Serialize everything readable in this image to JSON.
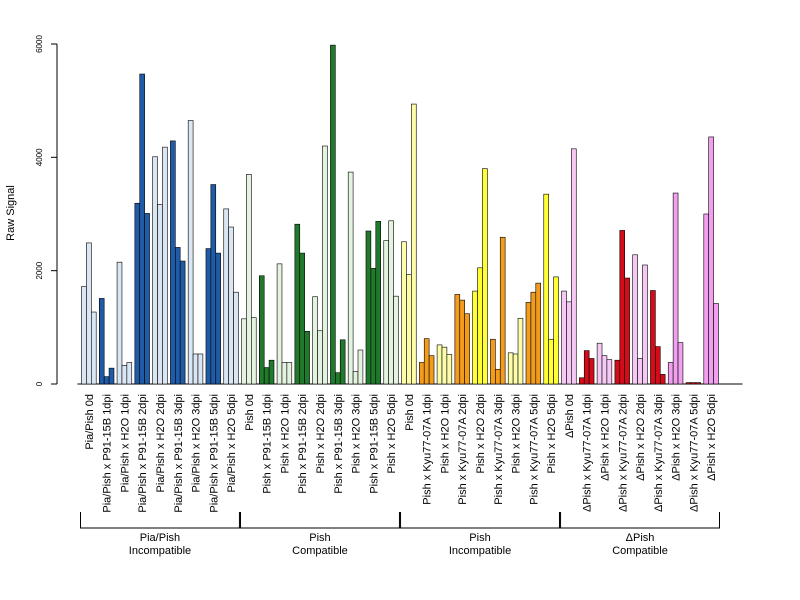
{
  "chart_data": {
    "type": "bar",
    "ylabel": "Raw Signal",
    "xlabel": "",
    "ylim": [
      0,
      6000
    ],
    "yticks": [
      0,
      2000,
      4000,
      6000
    ],
    "grid": false,
    "legend": "none",
    "colors": {
      "light_blue": "#dbe6f4",
      "blue": "#1f5ba6",
      "light_green": "#e4f2e0",
      "green": "#217a2b",
      "light_yellow": "#fdfca8",
      "yellow": "#ffff33",
      "orange": "#f39c1c",
      "light_pink": "#f6c8f4",
      "pink": "#f0a0ee",
      "red": "#d40c1a"
    },
    "categories": [
      {
        "label": "Pia/Pish 0d",
        "color": "light_blue",
        "values": [
          1720,
          2490,
          1270
        ]
      },
      {
        "label": "Pia/Pish x P91-15B 1dpi",
        "color": "blue",
        "values": [
          1510,
          130,
          280
        ]
      },
      {
        "label": "Pia/Pish x H2O 1dpi",
        "color": "light_blue",
        "values": [
          2150,
          330,
          380
        ]
      },
      {
        "label": "Pia/Pish x P91-15B 2dpi",
        "color": "blue",
        "values": [
          3190,
          5470,
          3010
        ]
      },
      {
        "label": "Pia/Pish x H2O 2dpi",
        "color": "light_blue",
        "values": [
          4010,
          3170,
          4180
        ]
      },
      {
        "label": "Pia/Pish x P91-15B 3dpi",
        "color": "blue",
        "values": [
          4290,
          2410,
          2170
        ]
      },
      {
        "label": "Pia/Pish x H2O 3dpi",
        "color": "light_blue",
        "values": [
          4650,
          530,
          530
        ]
      },
      {
        "label": "Pia/Pish x P91-15B 5dpi",
        "color": "blue",
        "values": [
          2390,
          3520,
          2310
        ]
      },
      {
        "label": "Pia/Pish x H2O 5dpi",
        "color": "light_blue",
        "values": [
          3090,
          2770,
          1620
        ]
      },
      {
        "label": "Pish 0d",
        "color": "light_green",
        "values": [
          1150,
          3700,
          1170
        ]
      },
      {
        "label": "Pish x P91-15B 1dpi",
        "color": "green",
        "values": [
          1910,
          290,
          420
        ]
      },
      {
        "label": "Pish x H2O 1dpi",
        "color": "light_green",
        "values": [
          2120,
          380,
          380
        ]
      },
      {
        "label": "Pish x P91-15B 2dpi",
        "color": "green",
        "values": [
          2820,
          2310,
          930
        ]
      },
      {
        "label": "Pish x H2O 2dpi",
        "color": "light_green",
        "values": [
          1540,
          940,
          4200
        ]
      },
      {
        "label": "Pish x P91-15B 3dpi",
        "color": "green",
        "values": [
          5980,
          200,
          780
        ]
      },
      {
        "label": "Pish x H2O 3dpi",
        "color": "light_green",
        "values": [
          3740,
          220,
          600
        ]
      },
      {
        "label": "Pish x P91-15B 5dpi",
        "color": "green",
        "values": [
          2700,
          2040,
          2870
        ]
      },
      {
        "label": "Pish x H2O 5dpi",
        "color": "light_green",
        "values": [
          2530,
          2880,
          1550
        ]
      },
      {
        "label": "Pish 0d",
        "color": "light_yellow",
        "values": [
          2510,
          1930,
          4940
        ]
      },
      {
        "label": "Pish x Kyu77-07A 1dpi",
        "color": "orange",
        "values": [
          380,
          800,
          500
        ]
      },
      {
        "label": "Pish x H2O 1dpi",
        "color": "light_yellow",
        "values": [
          690,
          650,
          520
        ]
      },
      {
        "label": "Pish x Kyu77-07A 2dpi",
        "color": "orange",
        "values": [
          1580,
          1480,
          1240
        ]
      },
      {
        "label": "Pish x H2O 2dpi",
        "color": "yellow",
        "values": [
          1640,
          2050,
          3800
        ]
      },
      {
        "label": "Pish x Kyu77-07A 3dpi",
        "color": "orange",
        "values": [
          790,
          260,
          2590
        ]
      },
      {
        "label": "Pish x H2O 3dpi",
        "color": "light_yellow",
        "values": [
          550,
          530,
          1160
        ]
      },
      {
        "label": "Pish x Kyu77-07A 5dpi",
        "color": "orange",
        "values": [
          1440,
          1620,
          1780
        ]
      },
      {
        "label": "Pish x H2O 5dpi",
        "color": "yellow",
        "values": [
          3350,
          790,
          1890
        ]
      },
      {
        "label": "ΔPish 0d",
        "color": "light_pink",
        "values": [
          1640,
          1450,
          4150
        ]
      },
      {
        "label": "ΔPish x Kyu77-07A 1dpi",
        "color": "red",
        "values": [
          110,
          590,
          450
        ]
      },
      {
        "label": "ΔPish x H2O 1dpi",
        "color": "light_pink",
        "values": [
          720,
          500,
          430
        ]
      },
      {
        "label": "ΔPish x Kyu77-07A 2dpi",
        "color": "red",
        "values": [
          420,
          2710,
          1870
        ]
      },
      {
        "label": "ΔPish x H2O 2dpi",
        "color": "light_pink",
        "values": [
          2280,
          450,
          2100
        ]
      },
      {
        "label": "ΔPish x Kyu77-07A 3dpi",
        "color": "red",
        "values": [
          1650,
          660,
          170
        ]
      },
      {
        "label": "ΔPish x H2O 3dpi",
        "color": "pink",
        "values": [
          380,
          3370,
          730
        ]
      },
      {
        "label": "ΔPish x Kyu77-07A 5dpi",
        "color": "red",
        "values": [
          25,
          25,
          25
        ]
      },
      {
        "label": "ΔPish x H2O 5dpi",
        "color": "pink",
        "values": [
          3000,
          4360,
          1420
        ]
      }
    ],
    "groups": [
      {
        "line1": "Pia/Pish",
        "line2": "Incompatible",
        "first": 0,
        "last": 8
      },
      {
        "line1": "Pish",
        "line2": "Compatible",
        "first": 9,
        "last": 17
      },
      {
        "line1": "Pish",
        "line2": "Incompatible",
        "first": 18,
        "last": 26
      },
      {
        "line1": "ΔPish",
        "line2": "Compatible",
        "first": 27,
        "last": 35
      }
    ]
  }
}
